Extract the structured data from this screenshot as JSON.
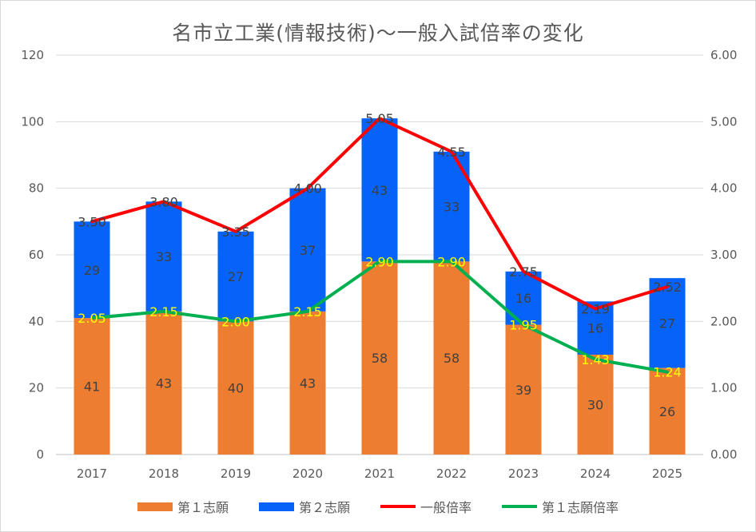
{
  "chart_data": {
    "type": "bar",
    "title": "名市立工業(情報技術)〜一般入試倍率の変化",
    "categories": [
      "2017",
      "2018",
      "2019",
      "2020",
      "2021",
      "2022",
      "2023",
      "2024",
      "2025"
    ],
    "series": [
      {
        "name": "第１志願",
        "kind": "stacked-bar",
        "axis": "left",
        "color": "#ED7D31",
        "values": [
          41,
          43,
          40,
          43,
          58,
          58,
          39,
          30,
          26
        ]
      },
      {
        "name": "第２志願",
        "kind": "stacked-bar",
        "axis": "left",
        "color": "#0563FA",
        "values": [
          29,
          33,
          27,
          37,
          43,
          33,
          16,
          16,
          27
        ]
      },
      {
        "name": "一般倍率",
        "kind": "line",
        "axis": "right",
        "color": "#FF0000",
        "values": [
          3.5,
          3.8,
          3.35,
          4.0,
          5.05,
          4.55,
          2.75,
          2.19,
          2.52
        ],
        "labels": [
          "3.50",
          "3.80",
          "3.35",
          "4.00",
          "5.05",
          "4.55",
          "2.75",
          "2.19",
          "2.52"
        ]
      },
      {
        "name": "第１志願倍率",
        "kind": "line",
        "axis": "right",
        "color": "#00B050",
        "values": [
          2.05,
          2.15,
          2.0,
          2.15,
          2.9,
          2.9,
          1.95,
          1.43,
          1.24
        ],
        "labels": [
          "2.05",
          "2.15",
          "2.00",
          "2.15",
          "2.90",
          "2.90",
          "1.95",
          "1.43",
          "1.24"
        ]
      }
    ],
    "y_left": {
      "min": 0,
      "max": 120,
      "step": 20,
      "ticks": [
        "0",
        "20",
        "40",
        "60",
        "80",
        "100",
        "120"
      ]
    },
    "y_right": {
      "min": 0,
      "max": 6,
      "step": 1,
      "ticks": [
        "0.00",
        "1.00",
        "2.00",
        "3.00",
        "4.00",
        "5.00",
        "6.00"
      ]
    },
    "grid": true,
    "legend_position": "bottom",
    "rate_label_color_secondary": "#FFFF00"
  }
}
